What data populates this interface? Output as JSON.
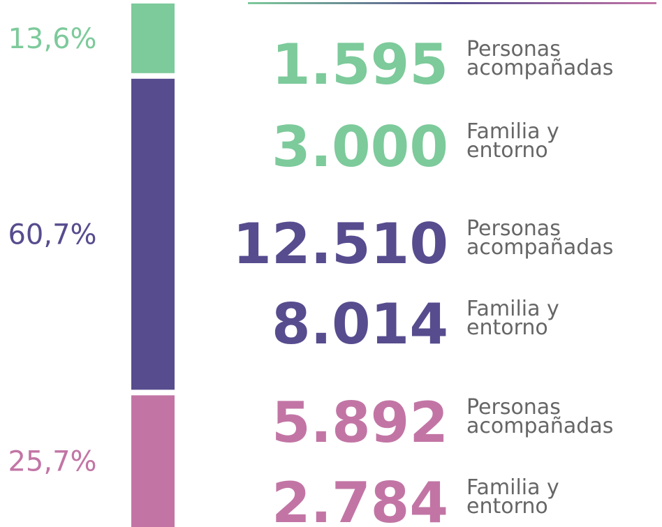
{
  "chart_data": {
    "type": "stacked_bar",
    "values": [
      13.6,
      60.7,
      25.7
    ],
    "value_labels": [
      "13,6%",
      "60,7%",
      "25,7%"
    ],
    "colors": [
      "#7dca9b",
      "#574c8e",
      "#c275a5"
    ],
    "figures": [
      {
        "number": "1.595",
        "lines": [
          "Personas",
          "acompañadas"
        ],
        "color": "#7dca9b"
      },
      {
        "number": "3.000",
        "lines": [
          "Familia y",
          "entorno"
        ],
        "color": "#7dca9b"
      },
      {
        "number": "12.510",
        "lines": [
          "Personas",
          "acompañadas"
        ],
        "color": "#574c8e"
      },
      {
        "number": "8.014",
        "lines": [
          "Familia y",
          "entorno"
        ],
        "color": "#574c8e"
      },
      {
        "number": "5.892",
        "lines": [
          "Personas",
          "acompañadas"
        ],
        "color": "#c275a5"
      },
      {
        "number": "2.784",
        "lines": [
          "Familia y",
          "entorno"
        ],
        "color": "#c275a5"
      }
    ]
  }
}
